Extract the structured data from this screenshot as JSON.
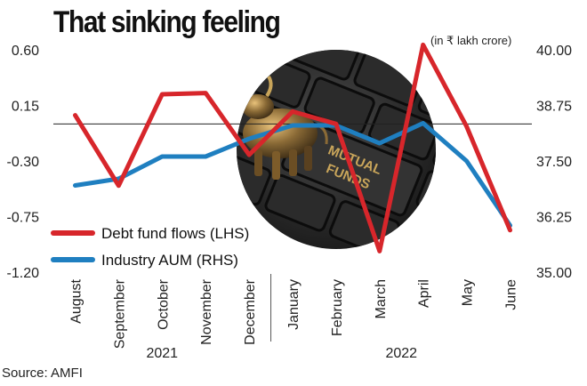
{
  "title": "That sinking feeling",
  "unit_note": "(in ₹ lakh crore)",
  "source": "Source: AMFI",
  "colors": {
    "debt": "#d7262b",
    "aum": "#1f7fc0",
    "reference_line": "#222222"
  },
  "image": {
    "description_icon": "bull-figurine-on-mutual-funds-keyboard-photo",
    "key_text": [
      "MUTUAL",
      "FUNDS"
    ]
  },
  "chart_data": {
    "type": "line",
    "title": "That sinking feeling",
    "categories": [
      "August",
      "September",
      "October",
      "November",
      "December",
      "January",
      "February",
      "March",
      "April",
      "May",
      "June"
    ],
    "year_groups": [
      {
        "label": "2021",
        "start": 0,
        "end": 4
      },
      {
        "label": "2022",
        "start": 5,
        "end": 10
      }
    ],
    "series": [
      {
        "name": "Debt fund flows (LHS)",
        "axis": "left",
        "color": "#d7262b",
        "values": [
          0.07,
          -0.5,
          0.24,
          0.25,
          -0.25,
          0.1,
          0.0,
          -1.03,
          0.64,
          -0.02,
          -0.86
        ]
      },
      {
        "name": "Industry AUM (RHS)",
        "axis": "right",
        "color": "#1f7fc0",
        "values": [
          36.95,
          37.1,
          37.6,
          37.6,
          38.0,
          38.3,
          38.3,
          37.9,
          38.35,
          37.5,
          36.05
        ]
      }
    ],
    "y_left": {
      "ylim": [
        -1.2,
        0.6
      ],
      "ticks": [
        "0.60",
        "0.15",
        "-0.30",
        "-0.75",
        "-1.20"
      ]
    },
    "y_right": {
      "ylim": [
        35.0,
        40.0
      ],
      "ticks": [
        "40.00",
        "38.75",
        "37.50",
        "36.25",
        "35.00"
      ]
    },
    "reference_line": 0,
    "legend": {
      "placement": "bottom-left",
      "entries": [
        "Debt fund flows (LHS)",
        "Industry AUM (RHS)"
      ]
    },
    "grid": false
  }
}
